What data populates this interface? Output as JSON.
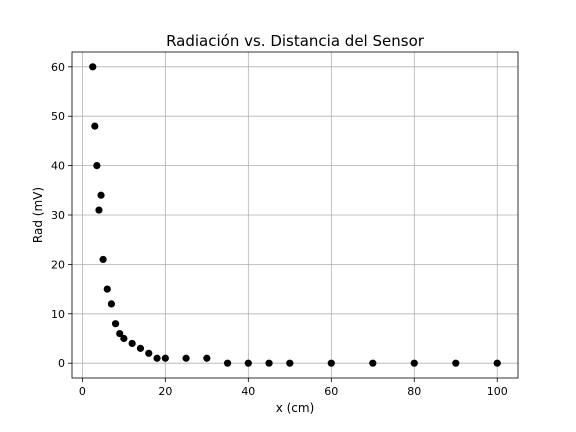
{
  "chart_data": {
    "type": "scatter",
    "title": "Radiación vs. Distancia del Sensor",
    "xlabel": "x (cm)",
    "ylabel": "Rad (mV)",
    "xlim": [
      -2.5,
      105
    ],
    "ylim": [
      -3,
      63
    ],
    "xticks": [
      0,
      20,
      40,
      60,
      80,
      100
    ],
    "yticks": [
      0,
      10,
      20,
      30,
      40,
      50,
      60
    ],
    "grid": true,
    "marker_color": "#000000",
    "points": [
      {
        "x": 2.5,
        "y": 60
      },
      {
        "x": 3,
        "y": 48
      },
      {
        "x": 3.5,
        "y": 40
      },
      {
        "x": 4,
        "y": 31
      },
      {
        "x": 4.5,
        "y": 34
      },
      {
        "x": 5,
        "y": 21
      },
      {
        "x": 6,
        "y": 15
      },
      {
        "x": 7,
        "y": 12
      },
      {
        "x": 8,
        "y": 8
      },
      {
        "x": 9,
        "y": 6
      },
      {
        "x": 10,
        "y": 5
      },
      {
        "x": 12,
        "y": 4
      },
      {
        "x": 14,
        "y": 3
      },
      {
        "x": 16,
        "y": 2
      },
      {
        "x": 18,
        "y": 1
      },
      {
        "x": 20,
        "y": 1
      },
      {
        "x": 25,
        "y": 1
      },
      {
        "x": 30,
        "y": 1
      },
      {
        "x": 35,
        "y": 0
      },
      {
        "x": 40,
        "y": 0
      },
      {
        "x": 45,
        "y": 0
      },
      {
        "x": 50,
        "y": 0
      },
      {
        "x": 60,
        "y": 0
      },
      {
        "x": 70,
        "y": 0
      },
      {
        "x": 80,
        "y": 0
      },
      {
        "x": 90,
        "y": 0
      },
      {
        "x": 100,
        "y": 0
      }
    ]
  }
}
